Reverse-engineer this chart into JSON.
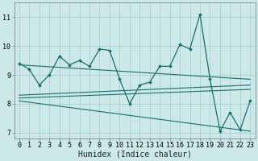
{
  "title": "",
  "xlabel": "Humidex (Indice chaleur)",
  "bg_color": "#cce8e8",
  "grid_color": "#aad0d0",
  "line_color": "#1a6e6e",
  "xlim": [
    -0.5,
    23.5
  ],
  "ylim": [
    6.8,
    11.5
  ],
  "yticks": [
    7,
    8,
    9,
    10,
    11
  ],
  "xticks": [
    0,
    1,
    2,
    3,
    4,
    5,
    6,
    7,
    8,
    9,
    10,
    11,
    12,
    13,
    14,
    15,
    16,
    17,
    18,
    19,
    20,
    21,
    22,
    23
  ],
  "main_x": [
    0,
    1,
    2,
    3,
    4,
    5,
    6,
    7,
    8,
    9,
    10,
    11,
    12,
    13,
    14,
    15,
    16,
    17,
    18,
    19,
    20,
    21,
    22,
    23
  ],
  "main_y": [
    9.4,
    9.2,
    8.65,
    9.0,
    9.65,
    9.35,
    9.5,
    9.3,
    9.9,
    9.85,
    8.85,
    8.0,
    8.65,
    8.75,
    9.3,
    9.3,
    10.05,
    9.9,
    11.1,
    8.85,
    7.05,
    7.7,
    7.1,
    8.1
  ],
  "trend1_x": [
    0,
    23
  ],
  "trend1_y": [
    9.35,
    8.85
  ],
  "trend2_x": [
    0,
    23
  ],
  "trend2_y": [
    8.3,
    8.65
  ],
  "trend3_x": [
    0,
    23
  ],
  "trend3_y": [
    8.2,
    8.5
  ],
  "trend4_x": [
    0,
    23
  ],
  "trend4_y": [
    8.1,
    7.05
  ],
  "tick_fontsize": 6,
  "label_fontsize": 7
}
